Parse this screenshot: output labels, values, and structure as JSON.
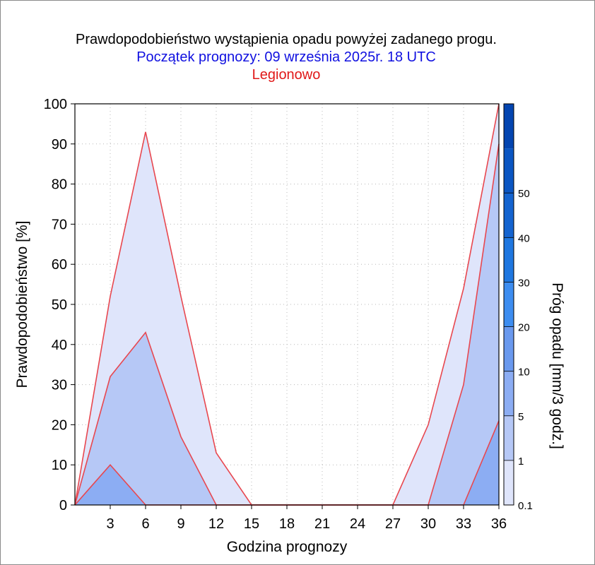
{
  "chart_data": {
    "type": "area",
    "title": "Prawdopodobieństwo wystąpienia opadu powyżej zadanego progu.",
    "subtitle": "Początek prognozy: 09 września 2025r. 18 UTC",
    "location": "Legionowo",
    "xlabel": "Godzina prognozy",
    "ylabel": "Prawdopodobieństwo [%]",
    "colorbar_label": "Próg opadu [mm/3 godz.]",
    "xlim": [
      0,
      36
    ],
    "ylim": [
      0,
      100
    ],
    "x_ticks": [
      3,
      6,
      9,
      12,
      15,
      18,
      21,
      24,
      27,
      30,
      33,
      36
    ],
    "y_ticks": [
      0,
      10,
      20,
      30,
      40,
      50,
      60,
      70,
      80,
      90,
      100
    ],
    "x": [
      0,
      3,
      6,
      9,
      12,
      15,
      18,
      21,
      24,
      27,
      30,
      33,
      36
    ],
    "series": [
      {
        "threshold": 0.1,
        "color": "#dfe5fb",
        "values": [
          0,
          52,
          93,
          52,
          13,
          0,
          0,
          0,
          0,
          0,
          20,
          54,
          100
        ]
      },
      {
        "threshold": 1,
        "color": "#b6c8f6",
        "values": [
          0,
          32,
          43,
          17,
          0,
          0,
          0,
          0,
          0,
          0,
          0,
          30,
          90
        ]
      },
      {
        "threshold": 5,
        "color": "#8cadf3",
        "values": [
          0,
          10,
          0,
          0,
          0,
          0,
          0,
          0,
          0,
          0,
          0,
          0,
          21
        ]
      }
    ],
    "colorbar": {
      "labels": [
        "0.1",
        "1",
        "5",
        "10",
        "20",
        "30",
        "40",
        "50"
      ],
      "colors": [
        "#dfe5fb",
        "#b6c8f6",
        "#8cadf3",
        "#6a99ee",
        "#3d8df0",
        "#1f77e0",
        "#1464d0",
        "#0b56c2",
        "#0445b0"
      ]
    },
    "grid": true,
    "line_color": "#e8474f"
  },
  "colors": {
    "title": "#000000",
    "subtitle": "#1010e0",
    "location": "#e01818"
  }
}
